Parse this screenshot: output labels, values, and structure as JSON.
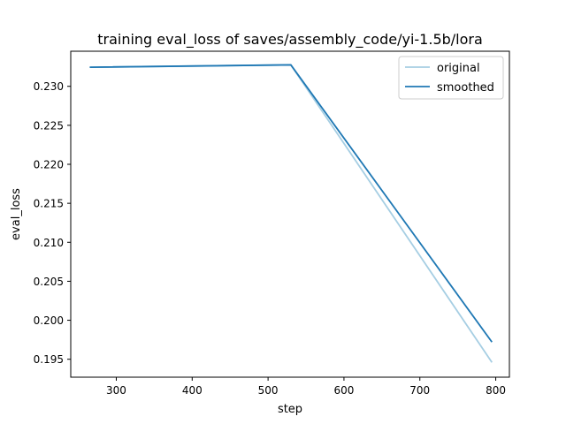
{
  "chart_data": {
    "type": "line",
    "title": "training eval_loss of saves/assembly_code/yi-1.5b/lora",
    "xlabel": "step",
    "ylabel": "eval_loss",
    "xlim": [
      240,
      818
    ],
    "ylim": [
      0.1927,
      0.2345
    ],
    "xticks": [
      300,
      400,
      500,
      600,
      700,
      800
    ],
    "yticks": [
      0.195,
      0.2,
      0.205,
      0.21,
      0.215,
      0.22,
      0.225,
      0.23
    ],
    "ytick_labels": [
      "0.195",
      "0.200",
      "0.205",
      "0.210",
      "0.215",
      "0.220",
      "0.225",
      "0.230"
    ],
    "grid": false,
    "legend_position": "top-right",
    "series": [
      {
        "name": "original",
        "color": "#a6cee3",
        "x": [
          265,
          530,
          795
        ],
        "y": [
          0.23245,
          0.23275,
          0.1946
        ]
      },
      {
        "name": "smoothed",
        "color": "#1f78b4",
        "x": [
          265,
          530,
          795
        ],
        "y": [
          0.23245,
          0.23275,
          0.1972
        ]
      }
    ]
  }
}
